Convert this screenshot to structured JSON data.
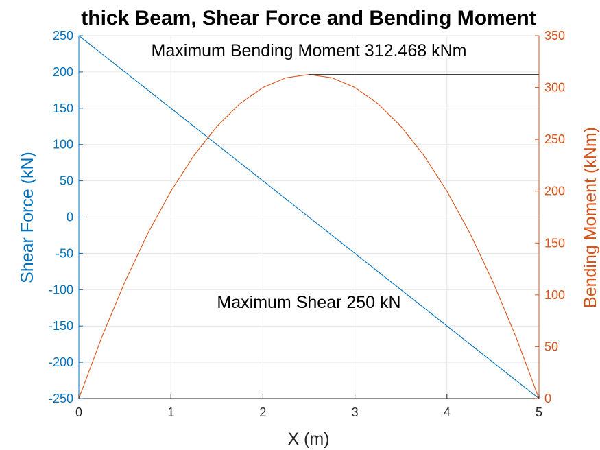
{
  "colors": {
    "shear": "#0072BD",
    "moment": "#D95319",
    "grid": "#E6E6E6",
    "axis_bottom": "#262626",
    "annotation_line": "#262626",
    "text": "#000000"
  },
  "chart_data": {
    "type": "line",
    "title": "thick Beam, Shear Force and Bending Moment",
    "xlabel": "X (m)",
    "ylabel_left": "Shear Force (kN)",
    "ylabel_right": "Bending Moment (kNm)",
    "xlim": [
      0,
      5
    ],
    "ylim_left": [
      -250,
      250
    ],
    "ylim_right": [
      0,
      350
    ],
    "xticks": [
      0,
      1,
      2,
      3,
      4,
      5
    ],
    "yticks_left": [
      -250,
      -200,
      -150,
      -100,
      -50,
      0,
      50,
      100,
      150,
      200,
      250
    ],
    "yticks_right": [
      0,
      50,
      100,
      150,
      200,
      250,
      300,
      350
    ],
    "grid": true,
    "series": [
      {
        "axis": "left",
        "color_key": "shear",
        "x": [
          0,
          0.5,
          1,
          1.5,
          2,
          2.5,
          3,
          3.5,
          4,
          4.5,
          5
        ],
        "y": [
          250,
          200,
          150,
          100,
          50,
          0,
          -50,
          -100,
          -150,
          -200,
          -250
        ]
      },
      {
        "axis": "right",
        "color_key": "moment",
        "x": [
          0,
          0.25,
          0.5,
          0.75,
          1,
          1.25,
          1.5,
          1.75,
          2,
          2.25,
          2.5,
          2.75,
          3,
          3.25,
          3.5,
          3.75,
          4,
          4.25,
          4.5,
          4.75,
          5
        ],
        "y": [
          0,
          59.4,
          112.5,
          159.4,
          200,
          234.4,
          262.5,
          284.4,
          300,
          309.4,
          312.5,
          309.4,
          300,
          284.4,
          262.5,
          234.4,
          200,
          159.4,
          112.5,
          59.4,
          0
        ]
      }
    ],
    "annotations": [
      {
        "text": "Maximum Bending Moment 312.468 kNm",
        "x": 2.5,
        "y_right": 330,
        "axis": "right"
      },
      {
        "text": "Maximum Shear 250 kN",
        "x": 2.5,
        "y_left": -125,
        "axis": "left"
      }
    ],
    "reference_line": {
      "axis": "right",
      "x_from": 2.5,
      "x_to": 5,
      "y": 312.468
    }
  }
}
